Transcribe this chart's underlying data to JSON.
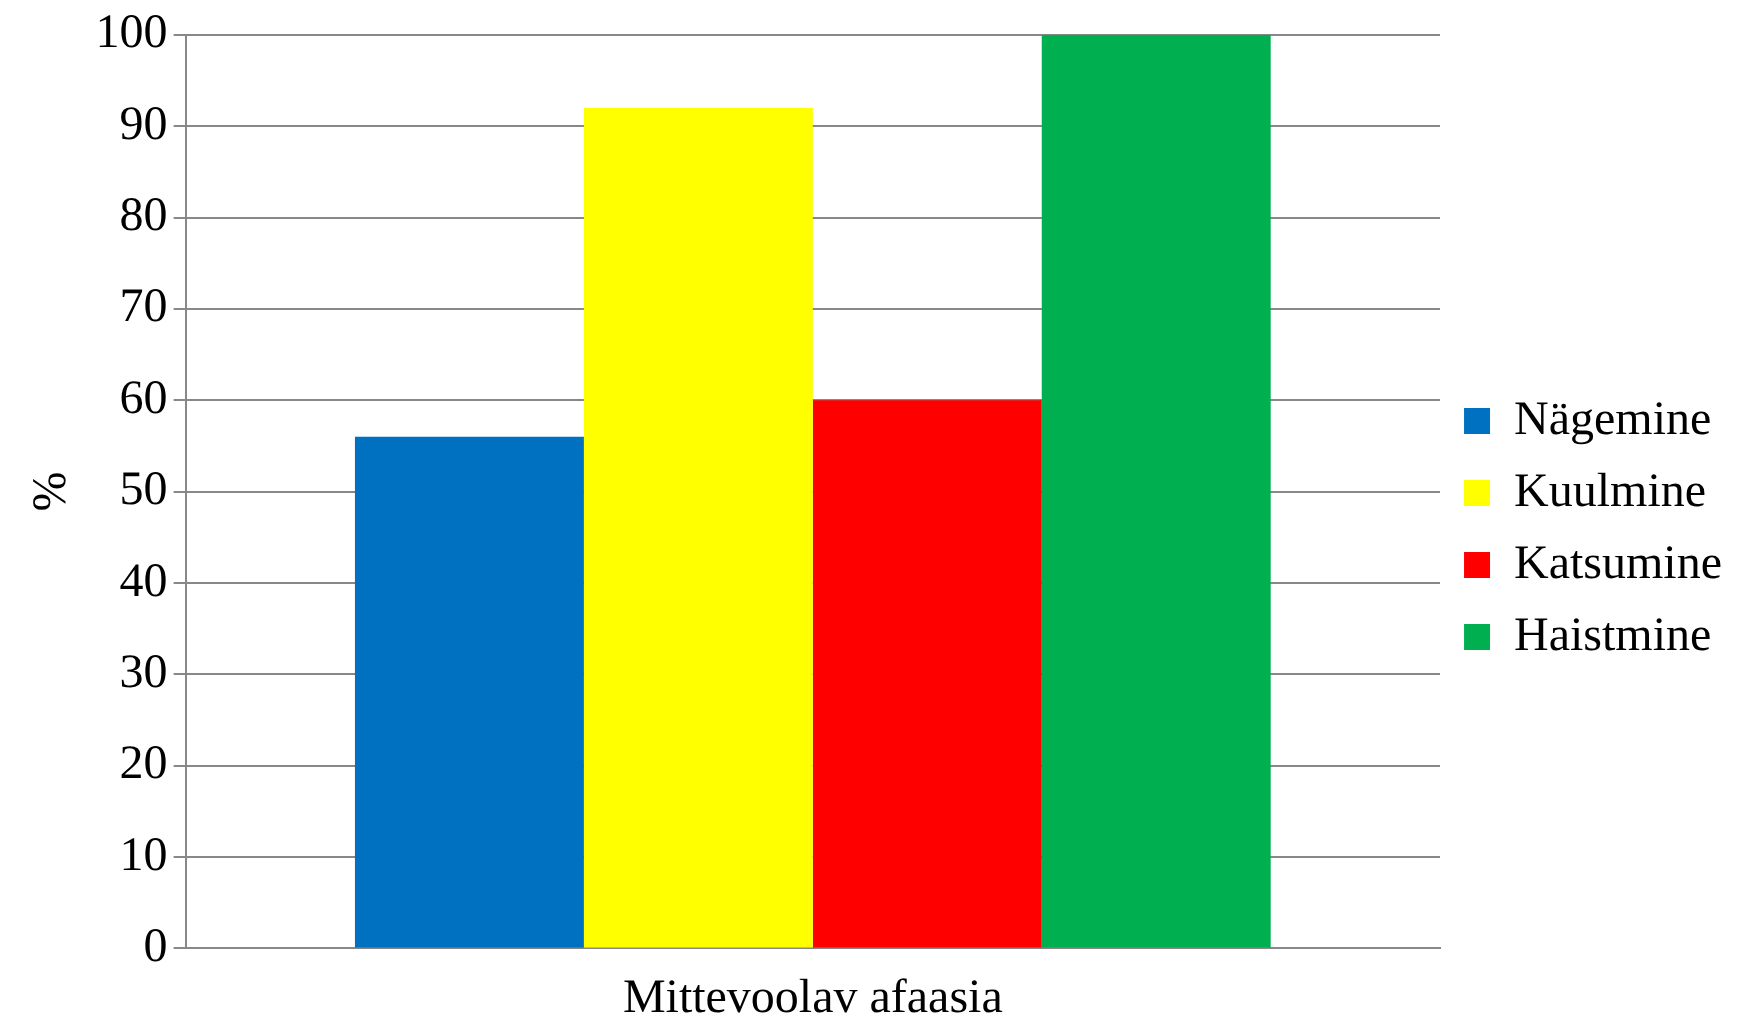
{
  "chart_data": {
    "type": "bar",
    "categories": [
      "Mittevoolav afaasia"
    ],
    "ylabel": "%",
    "series": [
      {
        "name": "Nägemine",
        "color": "#0070c0",
        "values": [
          56
        ]
      },
      {
        "name": "Kuulmine",
        "color": "#ffff00",
        "values": [
          92
        ]
      },
      {
        "name": "Katsumine",
        "color": "#ff0000",
        "values": [
          60
        ]
      },
      {
        "name": "Haistmine",
        "color": "#00b050",
        "values": [
          100
        ]
      }
    ],
    "ylim": [
      0,
      100
    ],
    "yticks": [
      0,
      10,
      20,
      30,
      40,
      50,
      60,
      70,
      80,
      90,
      100
    ],
    "grid": "y",
    "legend": "right"
  }
}
